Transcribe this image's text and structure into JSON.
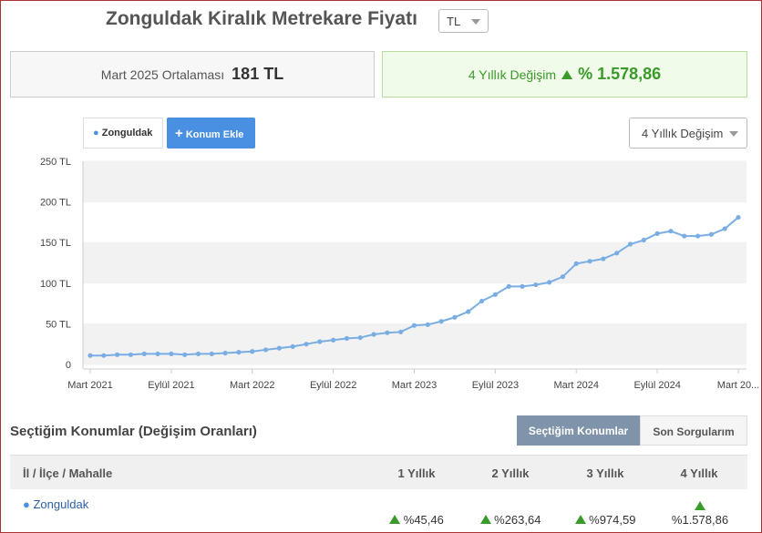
{
  "header": {
    "title": "Zonguldak Kiralık Metrekare Fiyatı",
    "currency": "TL"
  },
  "summary": {
    "average_label": "Mart 2025 Ortalaması",
    "average_value": "181 TL",
    "change_label": "4 Yıllık Değişim",
    "change_value": "% 1.578,86"
  },
  "controls": {
    "location_chip": "Zonguldak",
    "add_button": "Konum Ekle",
    "period_select": "4 Yıllık Değişim"
  },
  "chart_data": {
    "type": "line",
    "color": "#7aaee3",
    "categories": [
      "Mart 2021",
      null,
      null,
      null,
      null,
      null,
      "Eylül 2021",
      null,
      null,
      null,
      null,
      null,
      "Mart 2022",
      null,
      null,
      null,
      null,
      null,
      "Eylül 2022",
      null,
      null,
      null,
      null,
      null,
      "Mart 2023",
      null,
      null,
      null,
      null,
      null,
      "Eylül 2023",
      null,
      null,
      null,
      null,
      null,
      "Mart 2024",
      null,
      null,
      null,
      null,
      null,
      "Eylül 2024",
      null,
      null,
      null,
      null,
      null,
      "Mart 20..."
    ],
    "values": [
      11,
      11,
      12,
      12,
      13,
      13,
      13,
      12,
      13,
      13,
      14,
      15,
      16,
      18,
      20,
      22,
      25,
      28,
      30,
      32,
      33,
      37,
      39,
      40,
      48,
      49,
      53,
      58,
      65,
      78,
      86,
      96,
      96,
      98,
      101,
      108,
      124,
      127,
      130,
      137,
      148,
      153,
      161,
      164,
      158,
      158,
      160,
      167,
      181
    ],
    "ylim": [
      0,
      250
    ],
    "yticks": [
      0,
      {
        "value": 50,
        "label": "50 TL"
      },
      {
        "value": 100,
        "label": "100 TL"
      },
      {
        "value": 150,
        "label": "150 TL"
      },
      {
        "value": 200,
        "label": "200 TL"
      },
      {
        "value": 250,
        "label": "250 TL"
      }
    ],
    "grid": true
  },
  "section": {
    "title": "Seçtiğim Konumlar (Değişim Oranları)",
    "tabs": [
      "Seçtiğim Konumlar",
      "Son Sorgularım"
    ]
  },
  "table": {
    "header": [
      "İl / İlçe / Mahalle",
      "1 Yıllık",
      "2 Yıllık",
      "3 Yıllık",
      "4 Yıllık"
    ],
    "rows": [
      [
        "Zonguldak",
        "%45,46",
        "%263,64",
        "%974,59",
        "%1.578,86"
      ]
    ]
  }
}
